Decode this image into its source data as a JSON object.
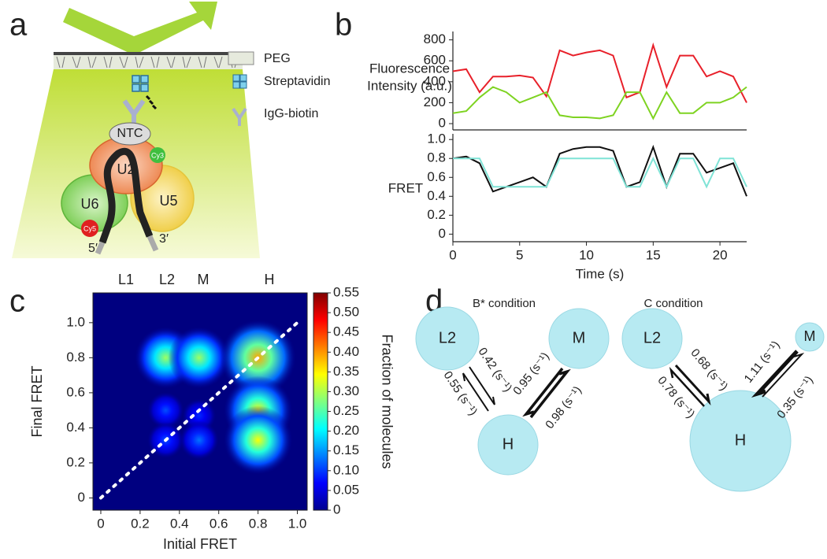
{
  "panel_labels": [
    "a",
    "b",
    "c",
    "d"
  ],
  "diagram_a": {
    "legend": [
      "PEG",
      "Streptavidin",
      "IgG-biotin"
    ],
    "complex": [
      "NTC",
      "U2",
      "U5",
      "U6",
      "Cy3",
      "Cy5"
    ],
    "ends": [
      "5′",
      "3′"
    ]
  },
  "chart_data": [
    {
      "type": "line",
      "ylabel": [
        "Fluorescence",
        "Intensity (a.u.)"
      ],
      "x": [
        0,
        1,
        2,
        3,
        4,
        5,
        6,
        7,
        8,
        9,
        10,
        11,
        12,
        13,
        14,
        15,
        16,
        17,
        18,
        19,
        20,
        21,
        22
      ],
      "xlim": [
        0,
        22
      ],
      "ylim": [
        -60,
        880
      ],
      "yticks": [
        0,
        200,
        400,
        600,
        800
      ],
      "series": [
        {
          "color": "#e8202a",
          "values": [
            500,
            520,
            300,
            450,
            450,
            460,
            440,
            260,
            700,
            650,
            680,
            700,
            650,
            250,
            300,
            750,
            350,
            650,
            650,
            450,
            500,
            450,
            200
          ]
        },
        {
          "color": "#7ed321",
          "values": [
            100,
            120,
            250,
            350,
            300,
            200,
            250,
            300,
            80,
            60,
            60,
            50,
            80,
            300,
            300,
            50,
            300,
            100,
            100,
            200,
            200,
            250,
            350
          ]
        }
      ]
    },
    {
      "type": "line",
      "ylabel": "FRET",
      "xlabel": "Time (s)",
      "x": [
        0,
        1,
        2,
        3,
        4,
        5,
        6,
        7,
        8,
        9,
        10,
        11,
        12,
        13,
        14,
        15,
        16,
        17,
        18,
        19,
        20,
        21,
        22
      ],
      "xlim": [
        0,
        22
      ],
      "xticks": [
        0,
        5,
        10,
        15,
        20
      ],
      "ylim": [
        -0.08,
        1.06
      ],
      "yticks": [
        0,
        0.2,
        0.4,
        0.6,
        0.8,
        {
          "value": 1,
          "label": "1.0"
        }
      ],
      "series": [
        {
          "color": "#111111",
          "values": [
            0.8,
            0.82,
            0.75,
            0.45,
            0.5,
            0.55,
            0.6,
            0.5,
            0.85,
            0.9,
            0.92,
            0.92,
            0.88,
            0.5,
            0.55,
            0.92,
            0.5,
            0.85,
            0.85,
            0.65,
            0.7,
            0.75,
            0.4
          ]
        },
        {
          "color": "#7fe3d6",
          "values": [
            0.8,
            0.8,
            0.8,
            0.5,
            0.5,
            0.5,
            0.5,
            0.5,
            0.8,
            0.8,
            0.8,
            0.8,
            0.8,
            0.5,
            0.5,
            0.8,
            0.5,
            0.8,
            0.8,
            0.5,
            0.8,
            0.8,
            0.5
          ]
        }
      ]
    },
    {
      "type": "heatmap",
      "xlabel": "Initial FRET",
      "ylabel": "Final FRET",
      "colorbar_label": "Fraction of molecules",
      "state_labels": [
        "L1",
        "L2",
        "M",
        "H"
      ],
      "x": [
        0.33,
        0.5,
        0.8,
        0.33,
        0.5,
        0.8,
        0.33,
        0.5,
        0.8
      ],
      "y": [
        0.8,
        0.8,
        0.8,
        0.5,
        0.47,
        0.5,
        0.33,
        0.33,
        0.33
      ],
      "values": [
        0.28,
        0.28,
        0.38,
        0.1,
        0.08,
        0.33,
        0.1,
        0.12,
        0.33
      ],
      "xlim": [
        -0.04,
        1.05
      ],
      "ylim": [
        -0.07,
        1.17
      ],
      "xticks": [
        0,
        0.2,
        0.4,
        0.6,
        0.8,
        {
          "value": 1,
          "label": "1.0"
        }
      ],
      "yticks": [
        0,
        0.2,
        0.4,
        0.6,
        0.8,
        {
          "value": 1,
          "label": "1.0"
        }
      ],
      "clim": [
        0,
        0.55
      ],
      "cticks": [
        0,
        0.05,
        {
          "value": 0.1,
          "label": "0.10"
        },
        0.15,
        {
          "value": 0.2,
          "label": "0.20"
        },
        0.25,
        {
          "value": 0.3,
          "label": "0.30"
        },
        0.35,
        {
          "value": 0.4,
          "label": "0.40"
        },
        0.45,
        {
          "value": 0.5,
          "label": "0.50"
        },
        0.55
      ]
    }
  ],
  "diagram_d": [
    {
      "title": "B* condition",
      "nodes": [
        "L2",
        "M",
        "H"
      ],
      "rates": [
        "0.42 (s⁻¹)",
        "0.55 (s⁻¹)",
        "0.95 (s⁻¹)",
        "0.98 (s⁻¹)"
      ]
    },
    {
      "title": "C condition",
      "nodes": [
        "L2",
        "M",
        "H"
      ],
      "rates": [
        "0.68 (s⁻¹)",
        "0.78 (s⁻¹)",
        "1.11 (s⁻¹)",
        "0.35 (s⁻¹)"
      ]
    }
  ]
}
